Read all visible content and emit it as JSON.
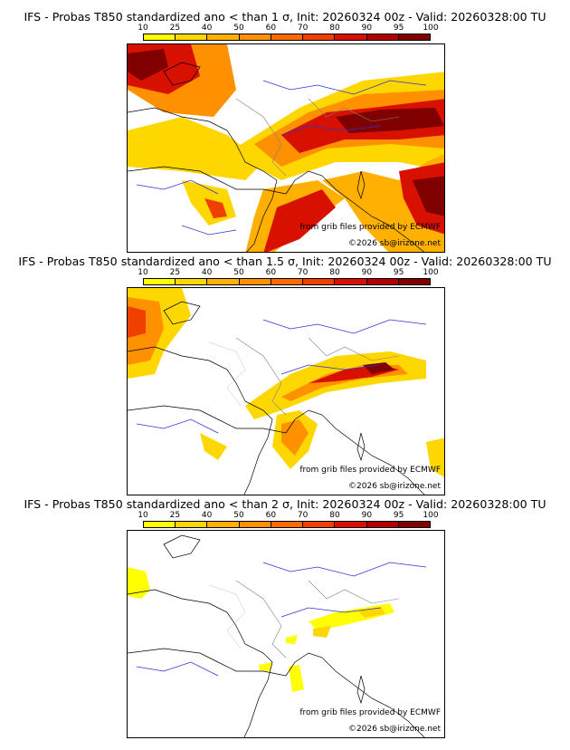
{
  "legend": {
    "ticks": [
      "10",
      "25",
      "40",
      "50",
      "60",
      "70",
      "80",
      "90",
      "95",
      "100"
    ],
    "colors": [
      "#ffff00",
      "#ffd700",
      "#ffb000",
      "#ff9000",
      "#ff6a00",
      "#f04000",
      "#d81000",
      "#b00000",
      "#800000"
    ]
  },
  "panels": [
    {
      "title": "IFS - Probas T850  standardized ano < than 1 σ, Init: 20260324 00z - Valid: 20260328:00 TU",
      "source": "from grib files provided by ECMWF",
      "copyright": "©2026 sb@irizone.net"
    },
    {
      "title": "IFS - Probas T850  standardized ano < than 1.5 σ, Init: 20260324 00z - Valid: 20260328:00 TU",
      "source": "from grib files provided by ECMWF",
      "copyright": "©2026 sb@irizone.net"
    },
    {
      "title": "IFS - Probas T850  standardized ano < than 2 σ, Init: 20260324 00z - Valid: 20260328:00 TU",
      "source": "from grib files provided by ECMWF",
      "copyright": "©2026 sb@irizone.net"
    }
  ]
}
